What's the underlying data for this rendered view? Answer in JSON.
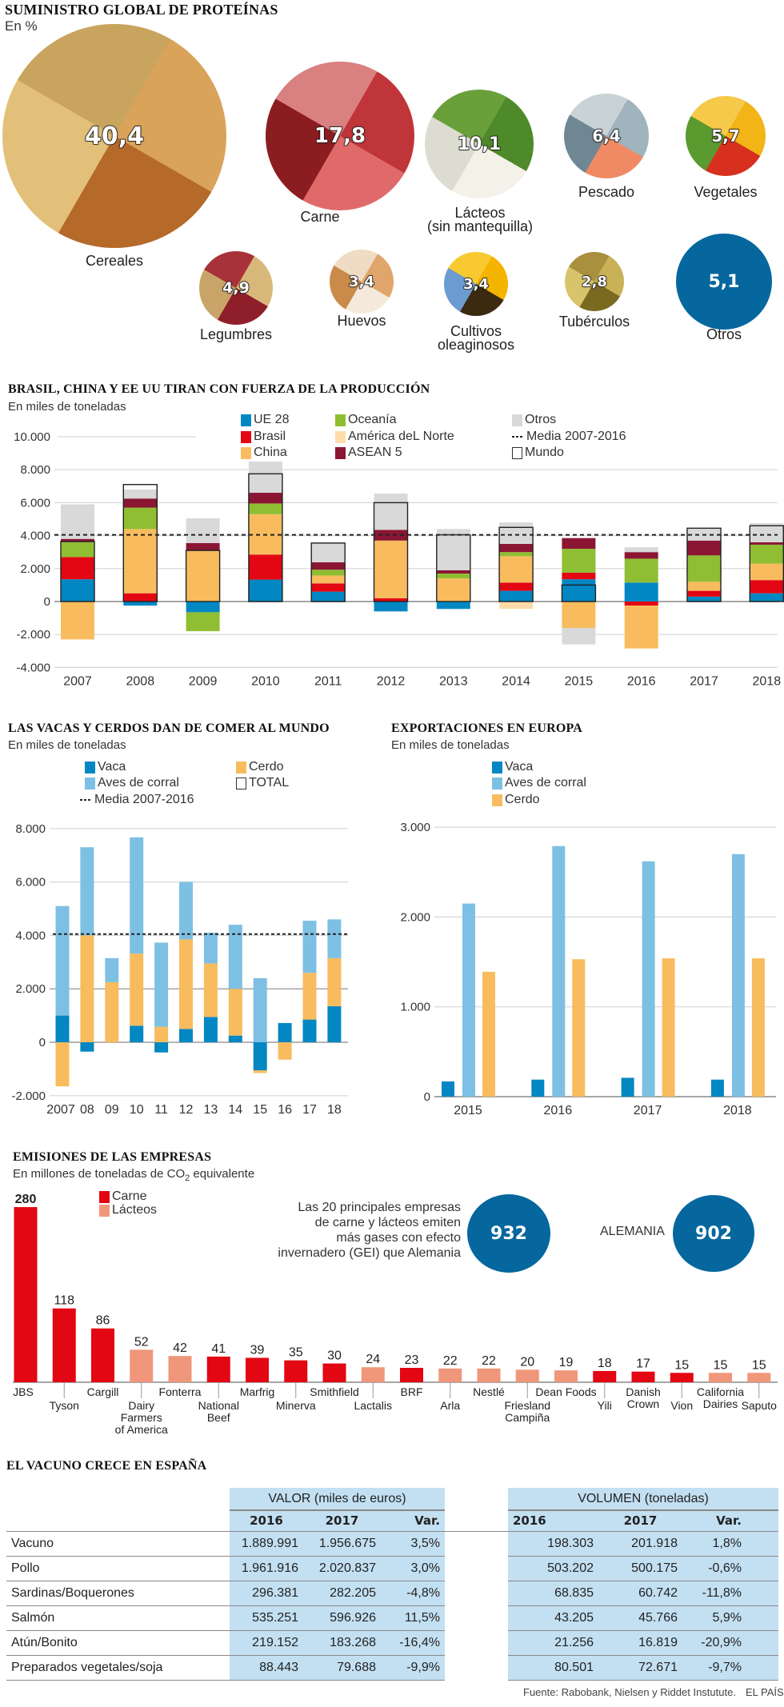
{
  "proteins": {
    "title": "SUMINISTRO GLOBAL DE PROTEÍNAS",
    "subtitle": "En %",
    "items": [
      {
        "label": "Cereales",
        "value": "40,4",
        "colors": [
          "#d9a35a",
          "#b56a2a",
          "#e3c07a",
          "#c9a45e"
        ]
      },
      {
        "label": "Carne",
        "value": "17,8",
        "colors": [
          "#c0353a",
          "#e06a6a",
          "#8b1c20",
          "#d98080"
        ]
      },
      {
        "label": "Lácteos\n(sin mantequilla)",
        "value": "10,1",
        "colors": [
          "#4f8a2a",
          "#f3f1e8",
          "#dcdcd0",
          "#6aa03a"
        ]
      },
      {
        "label": "Pescado",
        "value": "6,4",
        "colors": [
          "#9fb4bd",
          "#f08a64",
          "#6f8792",
          "#c9d3d6"
        ]
      },
      {
        "label": "Vegetales",
        "value": "5,7",
        "colors": [
          "#f2b416",
          "#d8301f",
          "#5a9a2e",
          "#f6c94a"
        ]
      },
      {
        "label": "Legumbres",
        "value": "4,9",
        "colors": [
          "#d8b87a",
          "#8e1f2a",
          "#c9a468",
          "#a8323a"
        ]
      },
      {
        "label": "Huevos",
        "value": "3,4",
        "colors": [
          "#e0a56a",
          "#f5e9dc",
          "#c98a4a",
          "#f0dcc4"
        ]
      },
      {
        "label": "Cultivos\noleaginosos",
        "value": "3,4",
        "colors": [
          "#f4b400",
          "#3b2a10",
          "#6c9bd1",
          "#f8c930"
        ]
      },
      {
        "label": "Tubérculos",
        "value": "2,8",
        "colors": [
          "#c9b256",
          "#7a6a20",
          "#d8c46a",
          "#a8903e"
        ]
      },
      {
        "label": "Otros",
        "value": "5,1",
        "color": "#05679e"
      }
    ]
  },
  "production": {
    "title": "BRASIL, CHINA Y EE UU TIRAN CON FUERZA DE LA PRODUCCIÓN",
    "subtitle": "En miles de toneladas",
    "legend": [
      {
        "label": "UE 28",
        "color": "#0287c3"
      },
      {
        "label": "Brasil",
        "color": "#e30613"
      },
      {
        "label": "China",
        "color": "#f8bc5e"
      },
      {
        "label": "Oceanía",
        "color": "#8fbe33"
      },
      {
        "label": "América deL Norte",
        "color": "#fddcaa"
      },
      {
        "label": "ASEAN 5",
        "color": "#8a1633"
      },
      {
        "label": "Otros",
        "color": "#d9d9d9"
      },
      {
        "label": "Media 2007-2016",
        "type": "dash"
      },
      {
        "label": "Mundo",
        "type": "box"
      }
    ]
  },
  "livestock": {
    "title": "LAS VACAS Y CERDOS DAN DE COMER AL MUNDO",
    "subtitle": "En miles de toneladas",
    "legend": [
      {
        "label": "Vaca",
        "color": "#0287c3"
      },
      {
        "label": "Aves de corral",
        "color": "#7dc0e3"
      },
      {
        "label": "Media 2007-2016",
        "type": "dash"
      },
      {
        "label": "Cerdo",
        "color": "#f8bc5e"
      },
      {
        "label": "TOTAL",
        "type": "box"
      }
    ]
  },
  "exports": {
    "title": "EXPORTACIONES EN EUROPA",
    "subtitle": "En miles de toneladas",
    "legend": [
      {
        "label": "Vaca",
        "color": "#0287c3"
      },
      {
        "label": "Aves de corral",
        "color": "#7dc0e3"
      },
      {
        "label": "Cerdo",
        "color": "#f8bc5e"
      }
    ]
  },
  "emissions": {
    "title": "EMISIONES DE LAS EMPRESAS",
    "subtitle_pre": "En millones de toneladas de CO",
    "subtitle_sub": "2",
    "subtitle_post": " equivalente",
    "legend": [
      {
        "label": "Carne",
        "color": "#e30613"
      },
      {
        "label": "Lácteos",
        "color": "#f0967a"
      }
    ],
    "callout_text": "Las 20 principales empresas\nde carne y lácteos emiten\nmás gases con efecto\ninvernadero (GEI) que Alemania",
    "callout_value": "932",
    "germany_label": "ALEMANIA",
    "germany_value": "902"
  },
  "chart_data": [
    {
      "type": "bar",
      "stacked": true,
      "title": "BRASIL, CHINA Y EE UU TIRAN CON FUERZA DE LA PRODUCCIÓN",
      "ylabel": "En miles de toneladas",
      "categories": [
        "2007",
        "2008",
        "2009",
        "2010",
        "2011",
        "2012",
        "2013",
        "2014",
        "2015",
        "2016",
        "2017",
        "2018"
      ],
      "ylim": [
        -4000,
        10000
      ],
      "yticks": [
        10000,
        8000,
        6000,
        4000,
        2000,
        0,
        -2000,
        -4000
      ],
      "ytick_labels": [
        "10.000",
        "8.000",
        "6.000",
        "4.000",
        "2.000",
        "0",
        "-2.000",
        "-4.000"
      ],
      "series": [
        {
          "name": "UE 28",
          "values": [
            1350,
            -250,
            -650,
            1330,
            600,
            -600,
            -450,
            650,
            1350,
            1150,
            300,
            500
          ]
        },
        {
          "name": "Brasil",
          "values": [
            1350,
            500,
            0,
            1520,
            500,
            200,
            0,
            500,
            400,
            -250,
            350,
            800
          ]
        },
        {
          "name": "China",
          "values": [
            -2300,
            3900,
            3100,
            2450,
            480,
            3500,
            1400,
            1600,
            -1600,
            -2600,
            550,
            1000
          ]
        },
        {
          "name": "Oceanía",
          "values": [
            900,
            1300,
            -1150,
            650,
            350,
            0,
            300,
            250,
            1450,
            1450,
            1600,
            1150
          ]
        },
        {
          "name": "América deL Norte",
          "values": [
            0,
            0,
            0,
            0,
            0,
            0,
            0,
            -450,
            0,
            0,
            0,
            0
          ]
        },
        {
          "name": "ASEAN 5",
          "values": [
            200,
            550,
            450,
            650,
            450,
            650,
            200,
            500,
            650,
            400,
            900,
            150
          ]
        },
        {
          "name": "Otros",
          "values": [
            2100,
            550,
            1500,
            1900,
            1200,
            2200,
            2500,
            1300,
            -1000,
            300,
            750,
            1150
          ]
        }
      ],
      "mundo": [
        3650,
        7100,
        3100,
        7750,
        3550,
        6000,
        4050,
        4500,
        1000,
        0,
        4450,
        4600
      ],
      "media_2007_2016": 4050
    },
    {
      "type": "bar",
      "stacked": true,
      "title": "LAS VACAS Y CERDOS DAN DE COMER AL MUNDO",
      "ylabel": "En miles de toneladas",
      "categories": [
        "2007",
        "08",
        "09",
        "10",
        "11",
        "12",
        "13",
        "14",
        "15",
        "16",
        "17",
        "18"
      ],
      "ylim": [
        -2000,
        8000
      ],
      "yticks": [
        8000,
        6000,
        4000,
        2000,
        0,
        -2000
      ],
      "ytick_labels": [
        "8.000",
        "6.000",
        "4.000",
        "2.000",
        "0",
        "-2.000"
      ],
      "series": [
        {
          "name": "Vaca",
          "values": [
            1000,
            -350,
            0,
            620,
            -380,
            500,
            950,
            250,
            -1050,
            720,
            850,
            1350
          ]
        },
        {
          "name": "Cerdo",
          "values": [
            -1650,
            4000,
            2250,
            2700,
            580,
            3350,
            2000,
            1750,
            -100,
            -650,
            1750,
            1800
          ]
        },
        {
          "name": "Aves de corral",
          "values": [
            4100,
            3300,
            900,
            4350,
            3150,
            2150,
            1150,
            2400,
            2400,
            0,
            1950,
            1450
          ]
        }
      ],
      "media_2007_2016": 4050
    },
    {
      "type": "bar",
      "grouped": true,
      "title": "EXPORTACIONES EN EUROPA",
      "ylabel": "En miles de toneladas",
      "categories": [
        "2015",
        "2016",
        "2017",
        "2018"
      ],
      "ylim": [
        0,
        3000
      ],
      "yticks": [
        3000,
        2000,
        1000,
        0
      ],
      "ytick_labels": [
        "3.000",
        "2.000",
        "1.000",
        "0"
      ],
      "series": [
        {
          "name": "Vaca",
          "values": [
            170,
            190,
            210,
            190
          ]
        },
        {
          "name": "Aves de corral",
          "values": [
            2150,
            2790,
            2620,
            2700
          ]
        },
        {
          "name": "Cerdo",
          "values": [
            1390,
            1530,
            1540,
            1540
          ]
        }
      ]
    },
    {
      "type": "bar",
      "title": "EMISIONES DE LAS EMPRESAS",
      "ylabel": "En millones de toneladas de CO2 equivalente",
      "categories": [
        "JBS",
        "Tyson",
        "Cargill",
        "Dairy Farmers of America",
        "Fonterra",
        "National Beef",
        "Marfrig",
        "Minerva",
        "Smithfield",
        "Lactalis",
        "BRF",
        "Arla",
        "Nestlé",
        "Friesland Campiña",
        "Dean Foods",
        "Yili",
        "Danish Crown",
        "Vion",
        "California Dairies",
        "Saputo"
      ],
      "label_lines": [
        [
          "JBS"
        ],
        [
          "Tyson"
        ],
        [
          "Cargill"
        ],
        [
          "Dairy",
          "Farmers",
          "of America"
        ],
        [
          "Fonterra"
        ],
        [
          "National",
          "Beef"
        ],
        [
          "Marfrig"
        ],
        [
          "Minerva"
        ],
        [
          "Smithfield"
        ],
        [
          "Lactalis"
        ],
        [
          "BRF"
        ],
        [
          "Arla"
        ],
        [
          "Nestlé"
        ],
        [
          "Friesland",
          "Campiña"
        ],
        [
          "Dean Foods"
        ],
        [
          "Yili"
        ],
        [
          "Danish",
          "Crown"
        ],
        [
          "Vion"
        ],
        [
          "California",
          "Dairies"
        ],
        [
          "Saputo"
        ]
      ],
      "values": [
        280,
        118,
        86,
        52,
        42,
        41,
        39,
        35,
        30,
        24,
        23,
        22,
        22,
        20,
        19,
        18,
        17,
        15,
        15,
        15
      ],
      "kind": [
        "Carne",
        "Carne",
        "Carne",
        "Lácteos",
        "Lácteos",
        "Carne",
        "Carne",
        "Carne",
        "Carne",
        "Lácteos",
        "Carne",
        "Lácteos",
        "Lácteos",
        "Lácteos",
        "Lácteos",
        "Carne",
        "Carne",
        "Carne",
        "Lácteos",
        "Lácteos"
      ]
    }
  ],
  "spain_table": {
    "title": "EL VACUNO CRECE EN ESPAÑA",
    "valor_header": "VALOR (miles de euros)",
    "volumen_header": "VOLUMEN (toneladas)",
    "col_2016": "2016",
    "col_2017": "2017",
    "col_var": "Var.",
    "rows": [
      {
        "name": "Vacuno",
        "v2016": "1.889.991",
        "v2017": "1.956.675",
        "vvar": "3,5%",
        "t2016": "198.303",
        "t2017": "201.918",
        "tvar": "1,8%"
      },
      {
        "name": "Pollo",
        "v2016": "1.961.916",
        "v2017": "2.020.837",
        "vvar": "3,0%",
        "t2016": "503.202",
        "t2017": "500.175",
        "tvar": "-0,6%"
      },
      {
        "name": "Sardinas/Boquerones",
        "v2016": "296.381",
        "v2017": "282.205",
        "vvar": "-4,8%",
        "t2016": "68.835",
        "t2017": "60.742",
        "tvar": "-11,8%"
      },
      {
        "name": "Salmón",
        "v2016": "535.251",
        "v2017": "596.926",
        "vvar": "11,5%",
        "t2016": "43.205",
        "t2017": "45.766",
        "tvar": "5,9%"
      },
      {
        "name": "Atún/Bonito",
        "v2016": "219.152",
        "v2017": "183.268",
        "vvar": "-16,4%",
        "t2016": "21.256",
        "t2017": "16.819",
        "tvar": "-20,9%"
      },
      {
        "name": "Preparados vegetales/soja",
        "v2016": "88.443",
        "v2017": "79.688",
        "vvar": "-9,9%",
        "t2016": "80.501",
        "t2017": "72.671",
        "tvar": "-9,7%"
      }
    ]
  },
  "footer": {
    "source": "Fuente: Rabobank, Nielsen y Riddet Instutute.",
    "brand": "EL PAÍS"
  }
}
